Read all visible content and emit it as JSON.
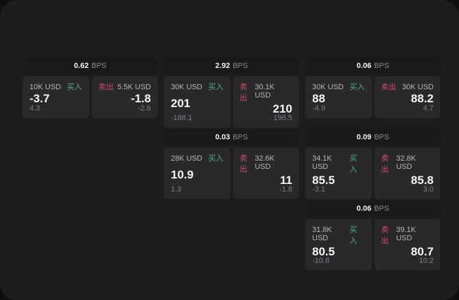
{
  "labels": {
    "bps_unit": "BPS",
    "buy": "买入",
    "sell": "卖出"
  },
  "colors": {
    "outer_bg": "#0f0f11",
    "window_bg": "#1d1d1f",
    "header_bg": "#19191b",
    "panel_bg": "#29292c",
    "buy_accent": "#4db178",
    "sell_accent": "#d04a64"
  },
  "cards": [
    {
      "bps": "0.62",
      "buy": {
        "amount": "10K USD",
        "price": "-3.7",
        "change": "4.3"
      },
      "sell": {
        "amount": "5.5K USD",
        "price": "-1.8",
        "change": "-2.6"
      }
    },
    {
      "bps": "2.92",
      "buy": {
        "amount": "30K USD",
        "price": "201",
        "change": "-188.1"
      },
      "sell": {
        "amount": "30.1K USD",
        "price": "210",
        "change": "196.5"
      }
    },
    {
      "bps": "0.06",
      "buy": {
        "amount": "30K USD",
        "price": "88",
        "change": "-4.9"
      },
      "sell": {
        "amount": "30K USD",
        "price": "88.2",
        "change": "4.7"
      }
    },
    {
      "bps": "0.03",
      "buy": {
        "amount": "28K USD",
        "price": "10.9",
        "change": "1.3"
      },
      "sell": {
        "amount": "32.6K USD",
        "price": "11",
        "change": "-1.8"
      }
    },
    {
      "bps": "0.09",
      "buy": {
        "amount": "34.1K USD",
        "price": "85.5",
        "change": "-3.1"
      },
      "sell": {
        "amount": "32.8K USD",
        "price": "85.8",
        "change": "3.0"
      }
    },
    {
      "bps": "0.06",
      "buy": {
        "amount": "31.8K USD",
        "price": "80.5",
        "change": "-10.8"
      },
      "sell": {
        "amount": "39.1K USD",
        "price": "80.7",
        "change": "10.2"
      }
    }
  ]
}
